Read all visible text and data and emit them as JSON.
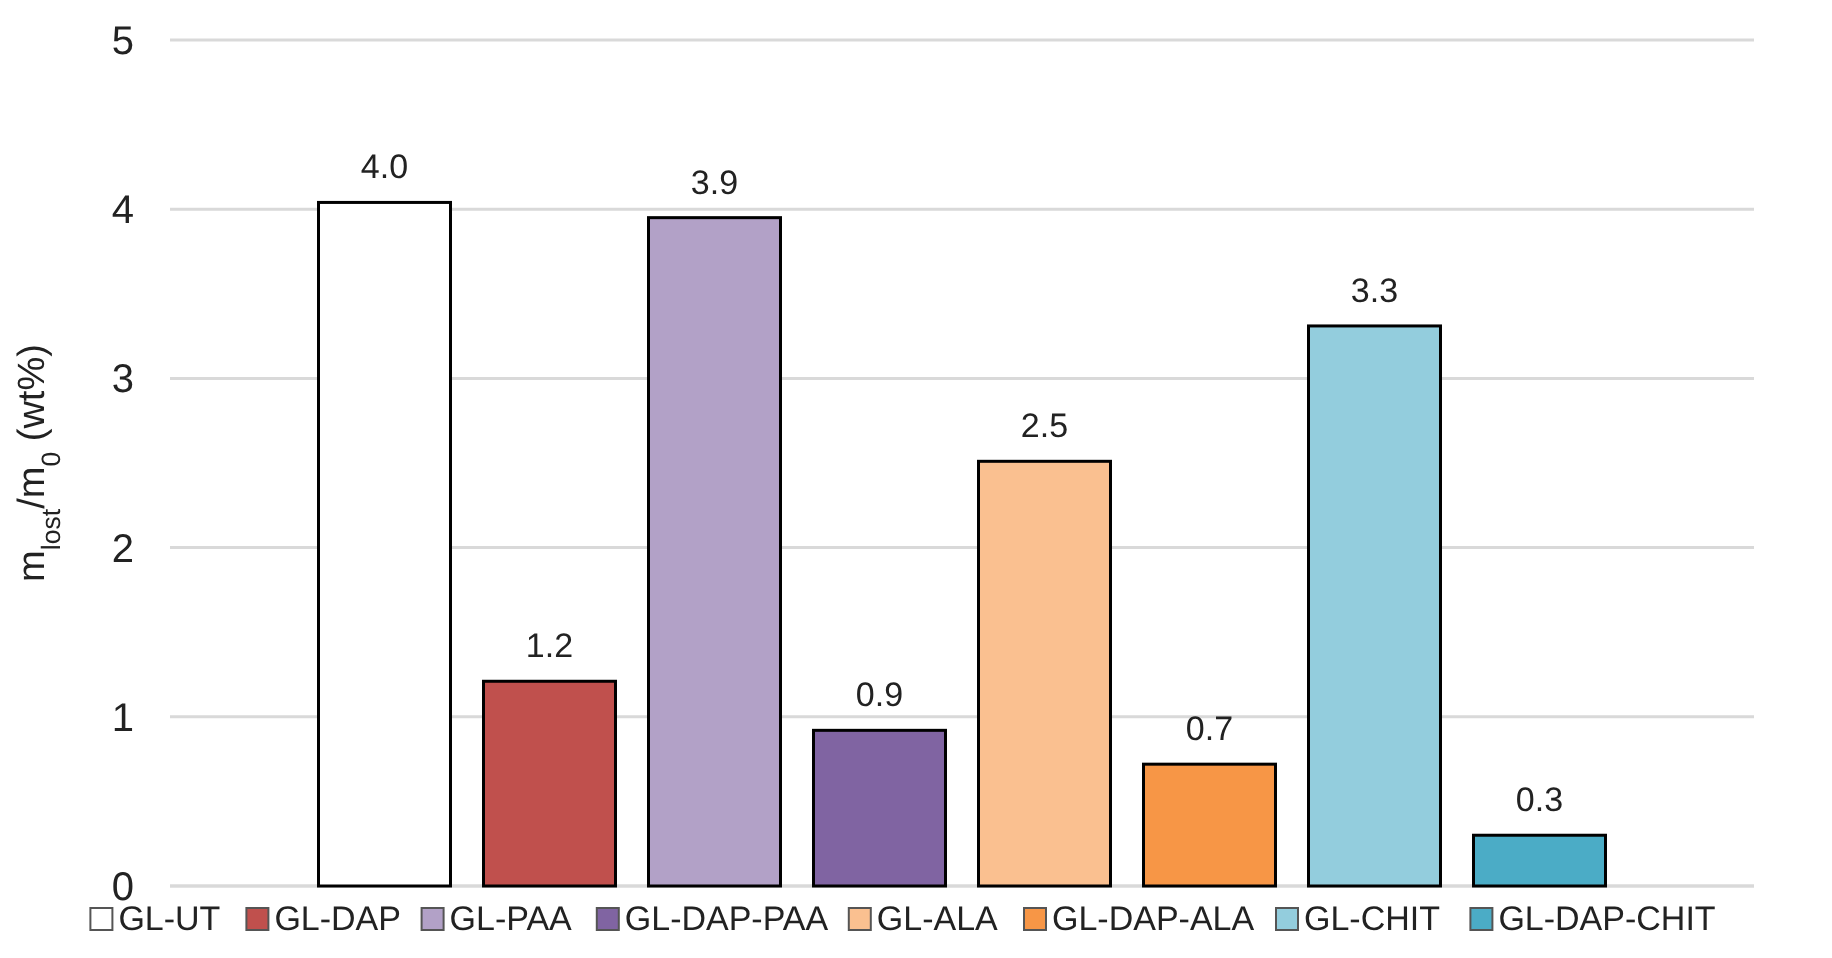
{
  "chart_data": {
    "type": "bar",
    "ylabel": "m$_{lost}$/m$_{0}$ (wt%)",
    "categories": [
      null
    ],
    "series": [
      {
        "name": "GL-UT",
        "color": "#ffffff",
        "values": [
          4.04
        ],
        "value_labels": [
          "4.0"
        ]
      },
      {
        "name": "GL-DAP",
        "color": "#c0504d",
        "values": [
          1.21
        ],
        "value_labels": [
          "1.2"
        ]
      },
      {
        "name": "GL-PAA",
        "color": "#b2a1c7",
        "values": [
          3.95
        ],
        "value_labels": [
          "3.9"
        ]
      },
      {
        "name": "GL-DAP-PAA",
        "color": "#8064a2",
        "values": [
          0.92
        ],
        "value_labels": [
          "0.9"
        ]
      },
      {
        "name": "GL-ALA",
        "color": "#fac090",
        "values": [
          2.51
        ],
        "value_labels": [
          "2.5"
        ]
      },
      {
        "name": "GL-DAP-ALA",
        "color": "#f79646",
        "values": [
          0.72
        ],
        "value_labels": [
          "0.7"
        ]
      },
      {
        "name": "GL-CHIT",
        "color": "#93cddd",
        "values": [
          3.31
        ],
        "value_labels": [
          "3.3"
        ]
      },
      {
        "name": "GL-DAP-CHIT",
        "color": "#4bacc6",
        "values": [
          0.3
        ],
        "value_labels": [
          "0.3"
        ]
      }
    ],
    "ylim": [
      0,
      5
    ],
    "yticks": [
      0,
      1,
      2,
      3,
      4,
      5
    ],
    "grid": "y",
    "legend": "bottom"
  }
}
